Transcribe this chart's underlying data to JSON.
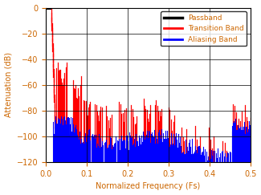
{
  "xlabel": "Normalized Frequency (Fs)",
  "ylabel": "Attenuation (dB)",
  "xlim": [
    0,
    0.5
  ],
  "ylim": [
    -120,
    0
  ],
  "yticks": [
    0,
    -20,
    -40,
    -60,
    -80,
    -100,
    -120
  ],
  "xticks": [
    0,
    0.1,
    0.2,
    0.3,
    0.4,
    0.5
  ],
  "legend_labels": [
    "Passband",
    "Transition Band",
    "Aliasing Band"
  ],
  "legend_colors": [
    "#000000",
    "#ff0000",
    "#0000ff"
  ],
  "passband_color": "#000000",
  "transition_color": "#ff0000",
  "aliasing_color": "#0000ff",
  "background_color": "#ffffff",
  "tick_color": "#cc6600",
  "label_color": "#cc6600",
  "legend_text_color": "#cc6600"
}
